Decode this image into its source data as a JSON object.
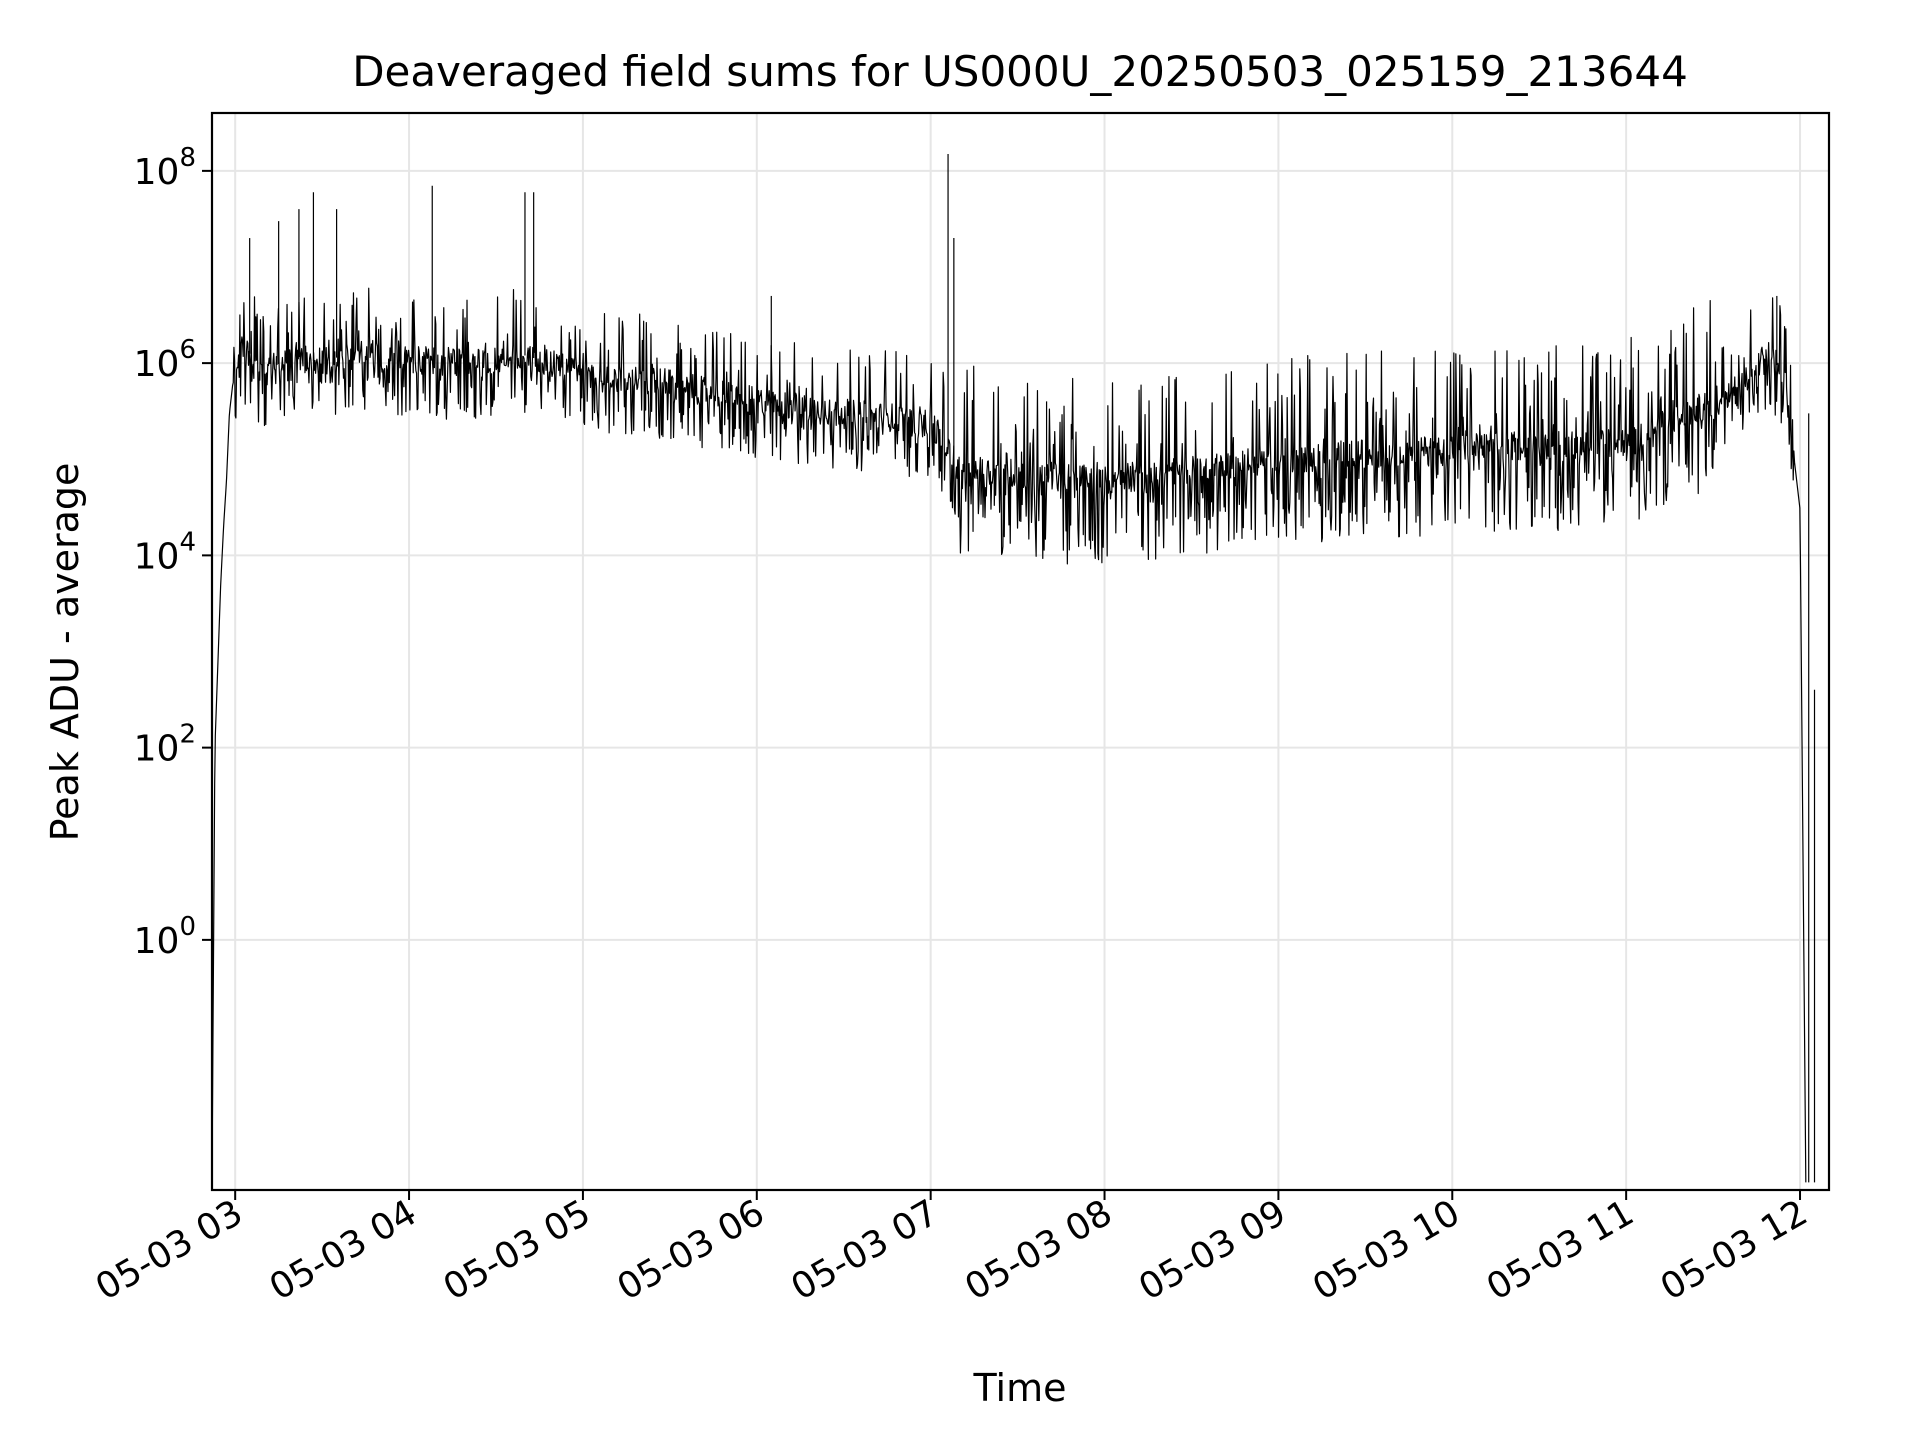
{
  "chart_data": {
    "type": "line",
    "title": "Deaveraged field sums for US000U_20250503_025159_213644",
    "xlabel": "Time",
    "ylabel": "Peak ADU - average",
    "y_scale": "log",
    "ylim": [
      0.0025,
      400000000
    ],
    "xlim": [
      "2025-05-03 02:52",
      "2025-05-03 12:10"
    ],
    "grid": true,
    "x_ticks": [
      {
        "value": "2025-05-03 03:00",
        "label": "05-03 03"
      },
      {
        "value": "2025-05-03 04:00",
        "label": "05-03 04"
      },
      {
        "value": "2025-05-03 05:00",
        "label": "05-03 05"
      },
      {
        "value": "2025-05-03 06:00",
        "label": "05-03 06"
      },
      {
        "value": "2025-05-03 07:00",
        "label": "05-03 07"
      },
      {
        "value": "2025-05-03 08:00",
        "label": "05-03 08"
      },
      {
        "value": "2025-05-03 09:00",
        "label": "05-03 09"
      },
      {
        "value": "2025-05-03 10:00",
        "label": "05-03 10"
      },
      {
        "value": "2025-05-03 11:00",
        "label": "05-03 11"
      },
      {
        "value": "2025-05-03 12:00",
        "label": "05-03 12"
      }
    ],
    "y_ticks": [
      {
        "value": 1,
        "base": "10",
        "exp": "0"
      },
      {
        "value": 100,
        "base": "10",
        "exp": "2"
      },
      {
        "value": 10000,
        "base": "10",
        "exp": "4"
      },
      {
        "value": 1000000,
        "base": "10",
        "exp": "6"
      },
      {
        "value": 100000000,
        "base": "10",
        "exp": "8"
      }
    ],
    "series": [
      {
        "color": "#000000",
        "points": [
          [
            "2025-05-03 02:52",
            0.003
          ],
          [
            "2025-05-03 02:53",
            100
          ],
          [
            "2025-05-03 02:55",
            5000
          ],
          [
            "2025-05-03 02:56",
            20000
          ],
          [
            "2025-05-03 02:57",
            60000
          ],
          [
            "2025-05-03 02:58",
            300000
          ],
          [
            "2025-05-03 03:00",
            1000000
          ],
          [
            "2025-05-03 03:03",
            1500000
          ],
          [
            "2025-05-03 03:10",
            800000
          ],
          [
            "2025-05-03 03:20",
            1200000
          ],
          [
            "2025-05-03 03:30",
            1000000
          ],
          [
            "2025-05-03 03:40",
            1300000
          ],
          [
            "2025-05-03 04:00",
            1100000
          ],
          [
            "2025-05-03 04:20",
            1000000
          ],
          [
            "2025-05-03 04:40",
            1200000
          ],
          [
            "2025-05-03 05:00",
            800000
          ],
          [
            "2025-05-03 05:30",
            600000
          ],
          [
            "2025-05-03 06:00",
            400000
          ],
          [
            "2025-05-03 06:30",
            300000
          ],
          [
            "2025-05-03 07:00",
            250000
          ],
          [
            "2025-05-03 07:10",
            80000
          ],
          [
            "2025-05-03 08:00",
            60000
          ],
          [
            "2025-05-03 09:00",
            100000
          ],
          [
            "2025-05-03 10:00",
            130000
          ],
          [
            "2025-05-03 11:00",
            150000
          ],
          [
            "2025-05-03 11:30",
            400000
          ],
          [
            "2025-05-03 11:50",
            1300000
          ],
          [
            "2025-05-03 11:55",
            600000
          ],
          [
            "2025-05-03 12:00",
            30000
          ],
          [
            "2025-05-03 12:02",
            0.003
          ]
        ],
        "spikes": [
          [
            "2025-05-03 03:05",
            20000000
          ],
          [
            "2025-05-03 03:15",
            30000000
          ],
          [
            "2025-05-03 03:22",
            40000000
          ],
          [
            "2025-05-03 03:27",
            60000000
          ],
          [
            "2025-05-03 03:35",
            40000000
          ],
          [
            "2025-05-03 04:08",
            70000000
          ],
          [
            "2025-05-03 04:40",
            60000000
          ],
          [
            "2025-05-03 04:43",
            60000000
          ],
          [
            "2025-05-03 06:05",
            5000000
          ],
          [
            "2025-05-03 07:06",
            150000000
          ],
          [
            "2025-05-03 07:08",
            20000000
          ],
          [
            "2025-05-03 07:40",
            400000
          ],
          [
            "2025-05-03 11:52",
            5000000
          ],
          [
            "2025-05-03 12:03",
            300000
          ],
          [
            "2025-05-03 12:05",
            400
          ]
        ]
      }
    ]
  }
}
